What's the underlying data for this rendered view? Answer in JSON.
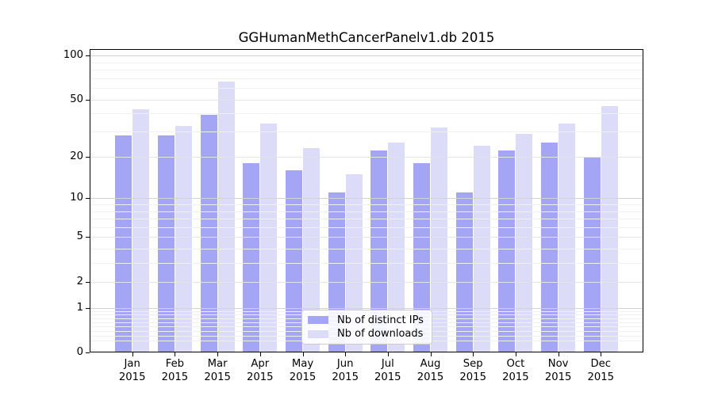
{
  "chart_data": {
    "type": "bar",
    "title": "GGHumanMethCancerPanelv1.db 2015",
    "year": "2015",
    "categories": [
      "Jan",
      "Feb",
      "Mar",
      "Apr",
      "May",
      "Jun",
      "Jul",
      "Aug",
      "Sep",
      "Oct",
      "Nov",
      "Dec"
    ],
    "series": [
      {
        "name": "Nb of distinct IPs",
        "key": "distinct-ips",
        "color": "#a5a5f5",
        "values": [
          28,
          28,
          39,
          18,
          16,
          11,
          22,
          18,
          11,
          22,
          25,
          20
        ]
      },
      {
        "name": "Nb of downloads",
        "key": "downloads",
        "color": "#dcdcf8",
        "values": [
          43,
          33,
          66,
          34,
          23,
          15,
          25,
          32,
          24,
          29,
          34,
          45
        ]
      }
    ],
    "y_axis": {
      "scale": "log10(1+value)",
      "tick_labels": [
        "100",
        "50",
        "20",
        "10",
        "5",
        "2",
        "1",
        "0"
      ],
      "tick_values": [
        100,
        50,
        20,
        10,
        5,
        2,
        1,
        0
      ],
      "decade_gridline_values": [
        1,
        10,
        100
      ],
      "level2_gridline_values": [
        2,
        5,
        20,
        50
      ],
      "minor_gridline_values": [
        0.2,
        0.3,
        0.4,
        0.5,
        0.6,
        0.7,
        0.8,
        0.9,
        3,
        4,
        6,
        7,
        8,
        9,
        30,
        40,
        60,
        70,
        80,
        90
      ],
      "range": [
        0,
        110
      ]
    },
    "legend": {
      "items": [
        "Nb of distinct IPs",
        "Nb of downloads"
      ],
      "position": "lower-center"
    },
    "grid": true
  }
}
